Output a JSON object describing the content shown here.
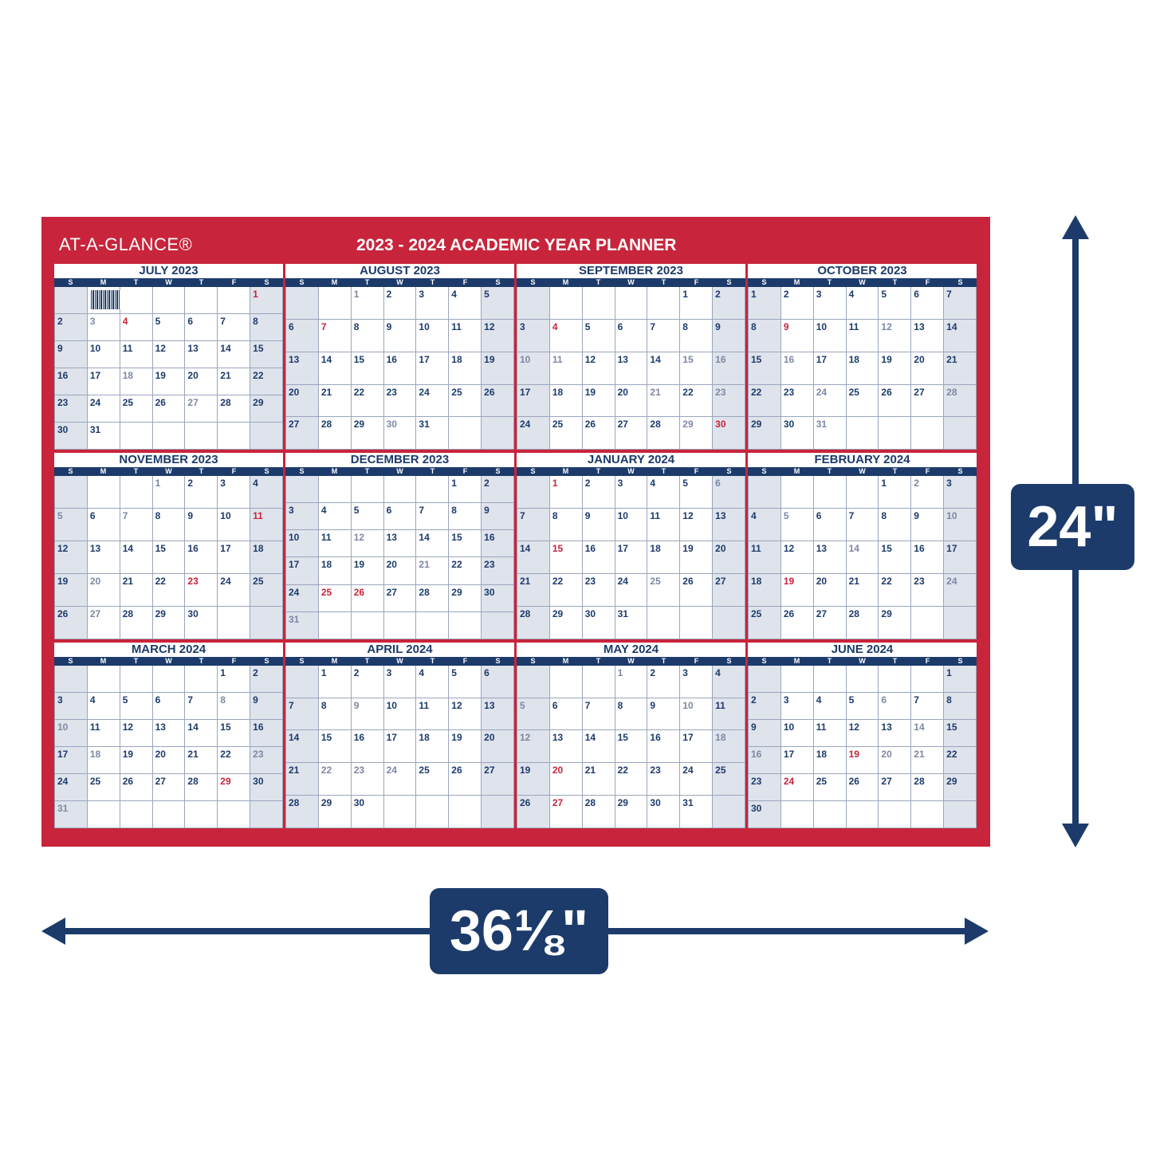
{
  "brand": "AT-A-GLANCE®",
  "title": "2023 - 2024  ACADEMIC YEAR PLANNER",
  "weekday_labels": [
    "S",
    "M",
    "T",
    "W",
    "T",
    "F",
    "S"
  ],
  "dimensions": {
    "height": "24\"",
    "width": "36⅛\""
  },
  "colors": {
    "primary_red": "#c8243b",
    "navy": "#1c3b6b",
    "weekend_shade": "#dfe3ec"
  },
  "months": [
    {
      "name": "JULY 2023",
      "start": 6,
      "days": 31,
      "red": [
        1,
        4
      ],
      "gray": [
        3,
        18,
        27
      ]
    },
    {
      "name": "AUGUST 2023",
      "start": 2,
      "days": 31,
      "red": [
        7
      ],
      "gray": [
        1,
        30
      ]
    },
    {
      "name": "SEPTEMBER 2023",
      "start": 5,
      "days": 30,
      "red": [
        4,
        30
      ],
      "gray": [
        10,
        11,
        15,
        16,
        21,
        23,
        29
      ]
    },
    {
      "name": "OCTOBER 2023",
      "start": 0,
      "days": 31,
      "red": [
        9
      ],
      "gray": [
        12,
        16,
        24,
        28,
        31
      ]
    },
    {
      "name": "NOVEMBER 2023",
      "start": 3,
      "days": 30,
      "red": [
        11,
        23
      ],
      "gray": [
        1,
        5,
        7,
        20,
        27
      ]
    },
    {
      "name": "DECEMBER 2023",
      "start": 5,
      "days": 31,
      "red": [
        25,
        26
      ],
      "gray": [
        12,
        21,
        31
      ]
    },
    {
      "name": "JANUARY 2024",
      "start": 1,
      "days": 31,
      "red": [
        1,
        15
      ],
      "gray": [
        6,
        25
      ]
    },
    {
      "name": "FEBRUARY 2024",
      "start": 4,
      "days": 29,
      "red": [
        19
      ],
      "gray": [
        2,
        5,
        10,
        14,
        24
      ]
    },
    {
      "name": "MARCH 2024",
      "start": 5,
      "days": 31,
      "red": [
        29
      ],
      "gray": [
        8,
        10,
        18,
        23,
        31
      ]
    },
    {
      "name": "APRIL 2024",
      "start": 1,
      "days": 30,
      "red": [],
      "gray": [
        9,
        22,
        23,
        24
      ]
    },
    {
      "name": "MAY 2024",
      "start": 3,
      "days": 31,
      "red": [
        20,
        27
      ],
      "gray": [
        1,
        5,
        10,
        12,
        18
      ]
    },
    {
      "name": "JUNE 2024",
      "start": 6,
      "days": 30,
      "red": [
        19,
        24
      ],
      "gray": [
        6,
        14,
        16,
        20,
        21
      ]
    }
  ]
}
